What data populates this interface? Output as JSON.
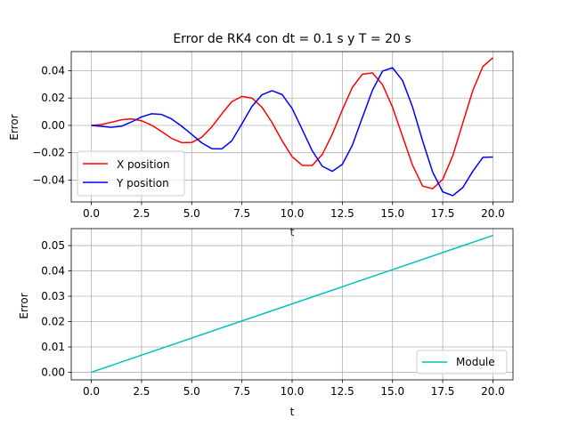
{
  "chart_data": [
    {
      "type": "line",
      "title": "Error de RK4 con dt = 0.1 s y T = 20 s",
      "xlabel": "t",
      "ylabel": "Error",
      "xlim": [
        -1,
        21
      ],
      "ylim": [
        -0.056,
        0.054
      ],
      "xticks": [
        "0.0",
        "2.5",
        "5.0",
        "7.5",
        "10.0",
        "12.5",
        "15.0",
        "17.5",
        "20.0"
      ],
      "xtick_values": [
        0,
        2.5,
        5,
        7.5,
        10,
        12.5,
        15,
        17.5,
        20
      ],
      "yticks": [
        "0.04",
        "0.02",
        "0.00",
        "−0.02",
        "−0.04"
      ],
      "ytick_values": [
        0.04,
        0.02,
        0.0,
        -0.02,
        -0.04
      ],
      "grid": true,
      "legend": "lower-left",
      "series": [
        {
          "name": "X position",
          "color": "#ff0000",
          "x": [
            0,
            0.5,
            1,
            1.5,
            2,
            2.5,
            3,
            3.5,
            4,
            4.5,
            5,
            5.5,
            6,
            6.5,
            7,
            7.5,
            8,
            8.5,
            9,
            9.5,
            10,
            10.5,
            11,
            11.5,
            12,
            12.5,
            13,
            13.5,
            14,
            14.5,
            15,
            15.5,
            16,
            16.5,
            17,
            17.5,
            18,
            18.5,
            19,
            19.5,
            20
          ],
          "y": [
            0,
            0.0006,
            0.0023,
            0.0041,
            0.0048,
            0.0034,
            0.0002,
            -0.0045,
            -0.0095,
            -0.0126,
            -0.0125,
            -0.0087,
            -0.0011,
            0.0085,
            0.0174,
            0.0212,
            0.02,
            0.0133,
            0.0021,
            -0.0112,
            -0.0229,
            -0.0292,
            -0.0293,
            -0.0213,
            -0.0065,
            0.0114,
            0.0278,
            0.0375,
            0.0384,
            0.0299,
            0.0133,
            -0.0081,
            -0.0292,
            -0.0444,
            -0.0463,
            -0.0395,
            -0.0222,
            0.0018,
            0.0256,
            0.0431,
            0.0495
          ]
        },
        {
          "name": "Y position",
          "color": "#0000ff",
          "x": [
            0,
            0.5,
            1,
            1.5,
            2,
            2.5,
            3,
            3.5,
            4,
            4.5,
            5,
            5.5,
            6,
            6.5,
            7,
            7.5,
            8,
            8.5,
            9,
            9.5,
            10,
            10.5,
            11,
            11.5,
            12,
            12.5,
            13,
            13.5,
            14,
            14.5,
            15,
            15.5,
            16,
            16.5,
            17,
            17.5,
            18,
            18.5,
            19,
            19.5,
            20
          ],
          "y": [
            0,
            -0.0007,
            -0.0014,
            -0.0006,
            0.0025,
            0.0062,
            0.0085,
            0.008,
            0.0047,
            -0.0006,
            -0.0066,
            -0.0128,
            -0.017,
            -0.0172,
            -0.0112,
            0.0012,
            0.0139,
            0.0224,
            0.0254,
            0.0226,
            0.0124,
            -0.0029,
            -0.0185,
            -0.0298,
            -0.0336,
            -0.0285,
            -0.0145,
            0.0058,
            0.0257,
            0.0397,
            0.0422,
            0.0328,
            0.0133,
            -0.0114,
            -0.0342,
            -0.0486,
            -0.0514,
            -0.0455,
            -0.0335,
            -0.0234,
            -0.0231
          ]
        }
      ]
    },
    {
      "type": "line",
      "title": "",
      "xlabel": "t",
      "ylabel": "Error",
      "xlim": [
        -1,
        21
      ],
      "ylim": [
        -0.003,
        0.0567
      ],
      "xticks": [
        "0.0",
        "2.5",
        "5.0",
        "7.5",
        "10.0",
        "12.5",
        "15.0",
        "17.5",
        "20.0"
      ],
      "xtick_values": [
        0,
        2.5,
        5,
        7.5,
        10,
        12.5,
        15,
        17.5,
        20
      ],
      "yticks": [
        "0.05",
        "0.04",
        "0.03",
        "0.02",
        "0.01",
        "0.00"
      ],
      "ytick_values": [
        0.05,
        0.04,
        0.03,
        0.02,
        0.01,
        0.0
      ],
      "grid": true,
      "legend": "lower-right",
      "series": [
        {
          "name": "Module",
          "color": "#00bfbf",
          "x": [
            0,
            20
          ],
          "y": [
            0,
            0.054
          ]
        }
      ]
    }
  ]
}
